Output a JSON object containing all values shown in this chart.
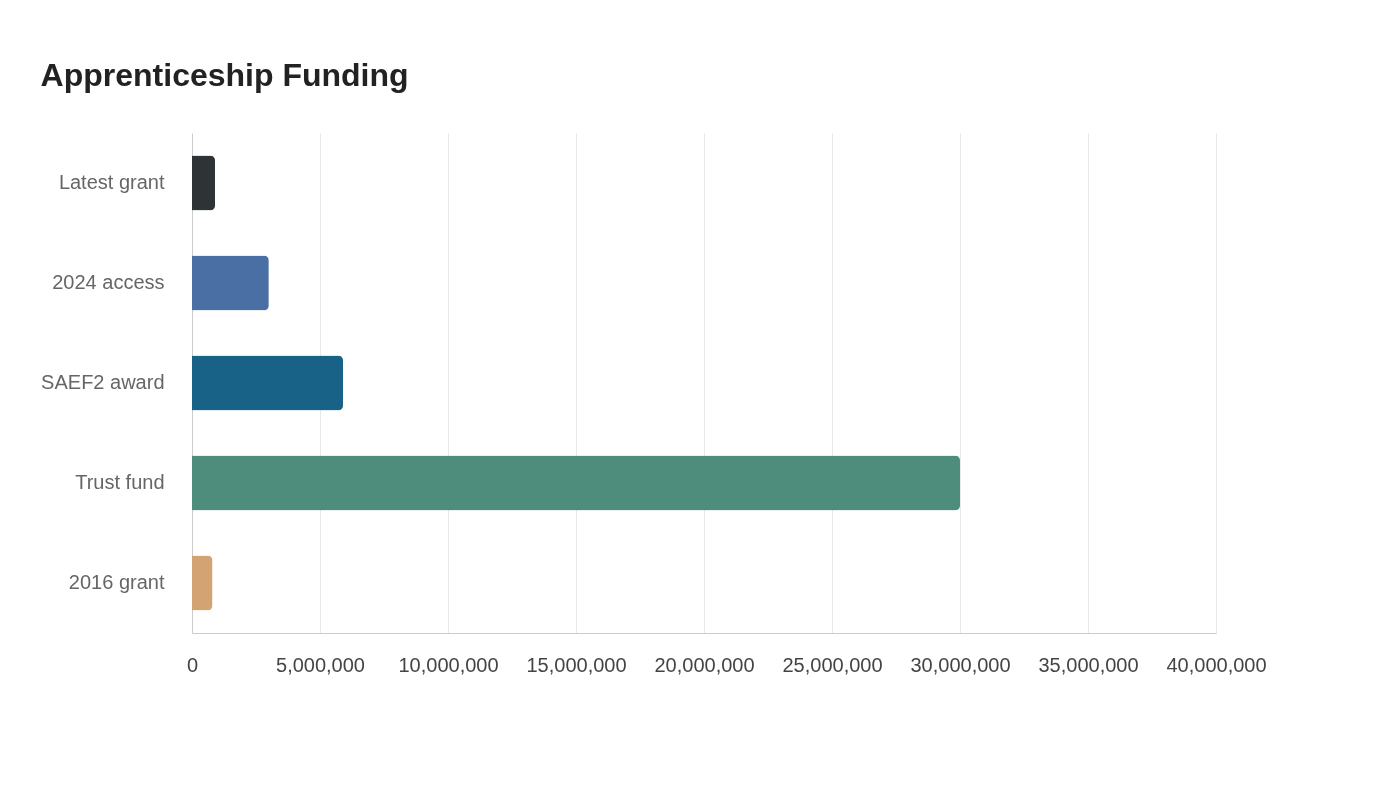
{
  "chart_data": {
    "type": "bar",
    "orientation": "horizontal",
    "title": "Apprenticeship Funding",
    "categories": [
      "Latest grant",
      "2024 access",
      "SAEF2 award",
      "Trust fund",
      "2016 grant"
    ],
    "values": [
      900000,
      3000000,
      5900000,
      30000000,
      800000
    ],
    "colors": [
      "#2e3436",
      "#4a6fa5",
      "#186287",
      "#4e8c7c",
      "#d4a373"
    ],
    "xlim": [
      0,
      40000000
    ],
    "xticks": [
      0,
      {
        "value": 5000000,
        "label": "5,000,000"
      },
      {
        "value": 10000000,
        "label": "10,000,000"
      },
      {
        "value": 15000000,
        "label": "15,000,000"
      },
      {
        "value": 20000000,
        "label": "20,000,000"
      },
      {
        "value": 25000000,
        "label": "25,000,000"
      },
      {
        "value": 30000000,
        "label": "30,000,000"
      },
      {
        "value": 35000000,
        "label": "35,000,000"
      },
      {
        "value": 40000000,
        "label": "40,000,000"
      }
    ],
    "grid": "x"
  }
}
